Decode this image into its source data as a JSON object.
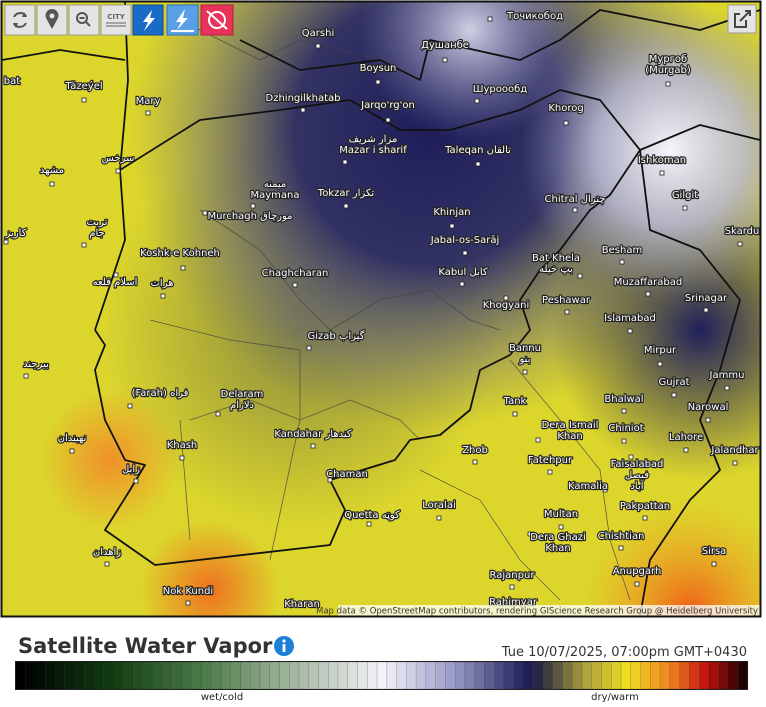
{
  "toolbar": {
    "city_button": "CITY"
  },
  "map": {
    "places": [
      [
        "Точикобод"
      ],
      [
        "Qarshi"
      ],
      [
        "Душанбе"
      ],
      [
        "Boysun"
      ],
      [
        "Мургоб",
        "(Murgab)"
      ],
      [
        "bat"
      ],
      [
        "Täzeýel"
      ],
      [
        "Шуроообд"
      ],
      [
        "Mary"
      ],
      [
        "Dzhingilkhatab"
      ],
      [
        "Jarqo'rg'on"
      ],
      [
        "Khorog"
      ],
      [
        "مزار شریف",
        "Mazar i sharif"
      ],
      [
        "Taleqan تالقان"
      ],
      [
        "Ishkoman"
      ],
      [
        "سرخس"
      ],
      [
        "مشهد"
      ],
      [
        "میمنه",
        "Maymana"
      ],
      [
        "Tokzar تکزار"
      ],
      [
        "Chitral چترال"
      ],
      [
        "Gilgit"
      ],
      [
        "Murchagh مورچاق"
      ],
      [
        "Khinjan"
      ],
      [
        "تربت",
        "جام"
      ],
      [
        "کاریز"
      ],
      [
        "Skardu"
      ],
      [
        "Jabal-os-Sarāj"
      ],
      [
        "Besham"
      ],
      [
        "Bat Khela",
        "بټ خيله"
      ],
      [
        "Koshk-e Kohneh"
      ],
      [
        "Kabul کابل"
      ],
      [
        "Chaghcharan"
      ],
      [
        "Muzaffarabad"
      ],
      [
        "اسلام قلعه"
      ],
      [
        "هرات"
      ],
      [
        "Srinagar"
      ],
      [
        "Peshawar"
      ],
      [
        "Khogyani"
      ],
      [
        "Islamabad"
      ],
      [
        "Gizab گیزاب"
      ],
      [
        "Bannu",
        "بنو"
      ],
      [
        "Mirpur"
      ],
      [
        "بیرجند"
      ],
      [
        "Jammu"
      ],
      [
        "Gujrat"
      ],
      [
        "(Farah) فراه"
      ],
      [
        "Delaram",
        "دلارام"
      ],
      [
        "Bhalwal"
      ],
      [
        "Tank"
      ],
      [
        "Narowal"
      ],
      [
        "Dera Ismail",
        "Khan"
      ],
      [
        "Chiniot"
      ],
      [
        "Kandahar کندهار"
      ],
      [
        "Lahore"
      ],
      [
        "نهبندان"
      ],
      [
        "Khash"
      ],
      [
        "Zhob"
      ],
      [
        "Jalandhar"
      ],
      [
        "Faisalabad",
        "فیصل",
        "آباد"
      ],
      [
        "Fatehpur"
      ],
      [
        "Chaman"
      ],
      [
        "زابل"
      ],
      [
        "Kamalia"
      ],
      [
        "Loralai"
      ],
      [
        "Quetta کوټه"
      ],
      [
        "Pakpattan"
      ],
      [
        "Multan"
      ],
      [
        "Dera Ghazi",
        "Khan"
      ],
      [
        "Chishtian"
      ],
      [
        "زاهدان"
      ],
      [
        "Sirsa"
      ],
      [
        "Anupgarh"
      ],
      [
        "Rajanpur"
      ],
      [
        "Nok Kundi"
      ],
      [
        "Kharan"
      ],
      [
        "Rahimyar"
      ]
    ],
    "attribution": "Map data © OpenStreetMap contributors, rendering GIScience Research Group @ Heidelberg University"
  },
  "footer": {
    "title": "Satellite Water Vapor",
    "timestamp": "Tue 10/07/2025, 07:00pm GMT+0430",
    "legend": {
      "low": "wet/cold",
      "high": "dry/warm"
    }
  }
}
